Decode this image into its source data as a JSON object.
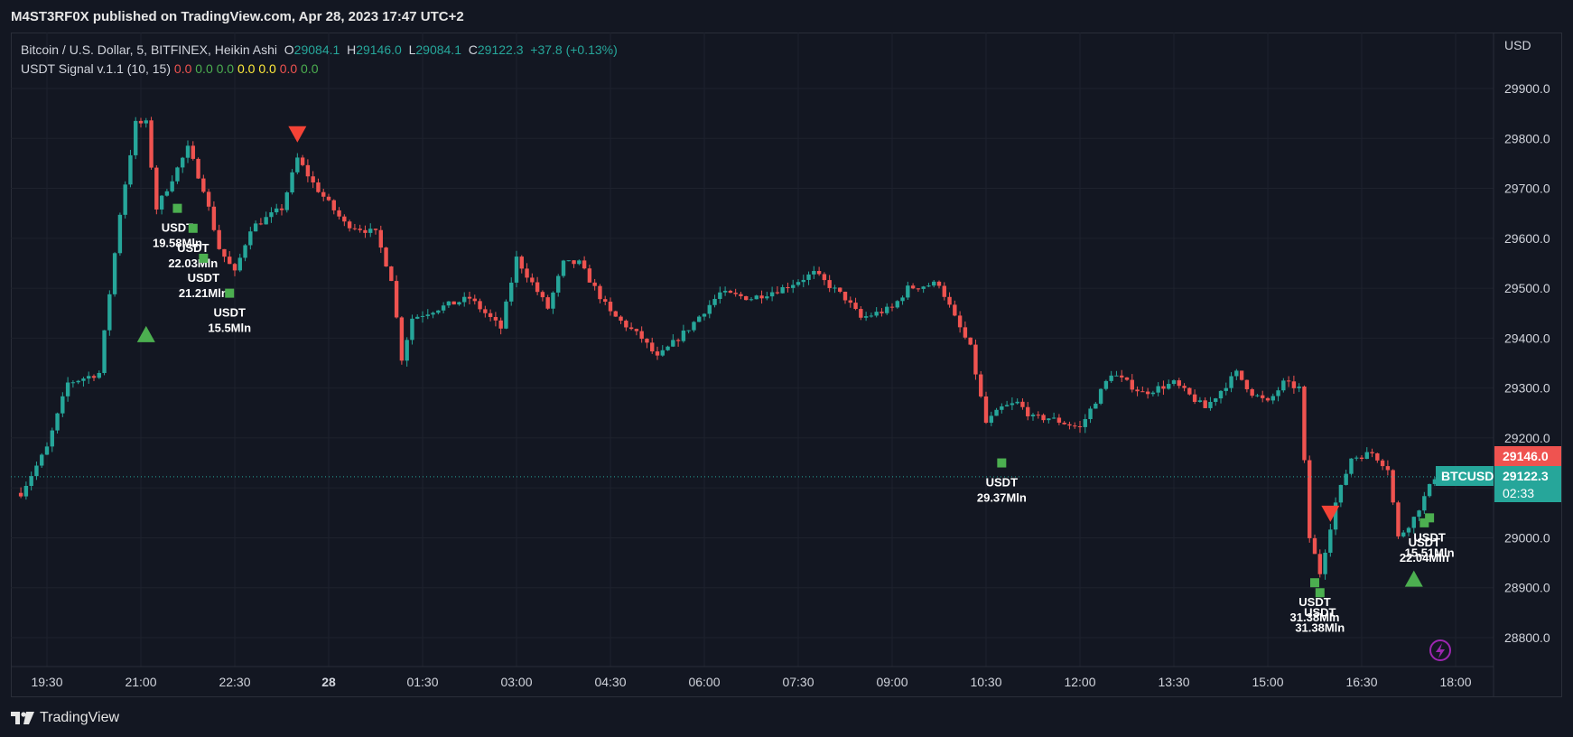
{
  "header": {
    "published": "M4ST3RF0X published on TradingView.com, Apr 28, 2023 17:47 UTC+2"
  },
  "legend": {
    "symbol": "Bitcoin / U.S. Dollar, 5, BITFINEX, Heikin Ashi",
    "o_label": "O",
    "o_value": "29084.1",
    "h_label": "H",
    "h_value": "29146.0",
    "l_label": "L",
    "l_value": "29084.1",
    "c_label": "C",
    "c_value": "29122.3",
    "change": "+37.8 (+0.13%)",
    "indicator": "USDT Signal v.1.1 (10, 15)",
    "indicator_values": [
      {
        "text": "0.0",
        "color": "#ef5350"
      },
      {
        "text": "0.0",
        "color": "#4caf50"
      },
      {
        "text": "0.0",
        "color": "#4caf50"
      },
      {
        "text": "0.0",
        "color": "#ffeb3b"
      },
      {
        "text": "0.0",
        "color": "#ffeb3b"
      },
      {
        "text": "0.0",
        "color": "#ef5350"
      },
      {
        "text": "0.0",
        "color": "#4caf50"
      }
    ]
  },
  "price_axis": {
    "currency": "USD",
    "ticks": [
      "29900.0",
      "29800.0",
      "29700.0",
      "29600.0",
      "29500.0",
      "29400.0",
      "29300.0",
      "29200.0",
      "29100.0",
      "29000.0",
      "28900.0",
      "28800.0"
    ],
    "high_label": "29146.0",
    "price_label": "29122.3",
    "countdown": "02:33",
    "symbol_tag": "BTCUSD"
  },
  "time_axis": {
    "ticks": [
      "19:30",
      "21:00",
      "22:30",
      "28",
      "01:30",
      "03:00",
      "04:30",
      "06:00",
      "07:30",
      "09:00",
      "10:30",
      "12:00",
      "13:30",
      "15:00",
      "16:30",
      "18:00"
    ]
  },
  "footer": {
    "brand": "TradingView"
  },
  "colors": {
    "up": "#26a69a",
    "down": "#ef5350",
    "signal": "#4caf50",
    "sell": "#f44336",
    "background": "#131722",
    "grid": "#1e222d"
  },
  "chart_data": {
    "type": "candlestick",
    "style": "Heikin Ashi",
    "interval": "5",
    "ylim": [
      28740,
      29960
    ],
    "grid": true,
    "keypoints": [
      {
        "t": "19:05",
        "p": 29090
      },
      {
        "t": "19:30",
        "p": 29180
      },
      {
        "t": "19:50",
        "p": 29310
      },
      {
        "t": "20:20",
        "p": 29330
      },
      {
        "t": "20:40",
        "p": 29650
      },
      {
        "t": "20:55",
        "p": 29830
      },
      {
        "t": "21:05",
        "p": 29830
      },
      {
        "t": "21:15",
        "p": 29660
      },
      {
        "t": "21:30",
        "p": 29720
      },
      {
        "t": "21:45",
        "p": 29780
      },
      {
        "t": "22:00",
        "p": 29700
      },
      {
        "t": "22:15",
        "p": 29580
      },
      {
        "t": "22:30",
        "p": 29530
      },
      {
        "t": "22:45",
        "p": 29620
      },
      {
        "t": "23:15",
        "p": 29660
      },
      {
        "t": "23:30",
        "p": 29760
      },
      {
        "t": "23:45",
        "p": 29710
      },
      {
        "t": "00:15",
        "p": 29630
      },
      {
        "t": "00:45",
        "p": 29610
      },
      {
        "t": "01:00",
        "p": 29520
      },
      {
        "t": "01:10",
        "p": 29360
      },
      {
        "t": "01:20",
        "p": 29440
      },
      {
        "t": "01:45",
        "p": 29460
      },
      {
        "t": "02:15",
        "p": 29480
      },
      {
        "t": "02:45",
        "p": 29420
      },
      {
        "t": "03:00",
        "p": 29560
      },
      {
        "t": "03:30",
        "p": 29460
      },
      {
        "t": "03:45",
        "p": 29550
      },
      {
        "t": "04:00",
        "p": 29550
      },
      {
        "t": "04:30",
        "p": 29450
      },
      {
        "t": "05:00",
        "p": 29400
      },
      {
        "t": "05:15",
        "p": 29360
      },
      {
        "t": "05:45",
        "p": 29420
      },
      {
        "t": "06:15",
        "p": 29490
      },
      {
        "t": "06:45",
        "p": 29480
      },
      {
        "t": "07:15",
        "p": 29500
      },
      {
        "t": "07:45",
        "p": 29530
      },
      {
        "t": "08:15",
        "p": 29480
      },
      {
        "t": "08:30",
        "p": 29440
      },
      {
        "t": "09:00",
        "p": 29460
      },
      {
        "t": "09:15",
        "p": 29500
      },
      {
        "t": "09:45",
        "p": 29510
      },
      {
        "t": "10:00",
        "p": 29440
      },
      {
        "t": "10:15",
        "p": 29380
      },
      {
        "t": "10:30",
        "p": 29230
      },
      {
        "t": "10:45",
        "p": 29260
      },
      {
        "t": "11:00",
        "p": 29270
      },
      {
        "t": "11:15",
        "p": 29240
      },
      {
        "t": "11:30",
        "p": 29240
      },
      {
        "t": "12:00",
        "p": 29220
      },
      {
        "t": "12:30",
        "p": 29330
      },
      {
        "t": "13:00",
        "p": 29290
      },
      {
        "t": "13:30",
        "p": 29310
      },
      {
        "t": "14:00",
        "p": 29260
      },
      {
        "t": "14:30",
        "p": 29330
      },
      {
        "t": "14:45",
        "p": 29290
      },
      {
        "t": "15:00",
        "p": 29270
      },
      {
        "t": "15:15",
        "p": 29310
      },
      {
        "t": "15:30",
        "p": 29300
      },
      {
        "t": "15:40",
        "p": 29000
      },
      {
        "t": "15:50",
        "p": 28930
      },
      {
        "t": "16:05",
        "p": 29070
      },
      {
        "t": "16:20",
        "p": 29160
      },
      {
        "t": "16:40",
        "p": 29170
      },
      {
        "t": "16:55",
        "p": 29140
      },
      {
        "t": "17:05",
        "p": 29000
      },
      {
        "t": "17:20",
        "p": 29040
      },
      {
        "t": "17:40",
        "p": 29122
      }
    ],
    "signals": [
      {
        "kind": "buy-triangle",
        "t": "21:05",
        "p": 29410
      },
      {
        "kind": "sell-triangle",
        "t": "23:30",
        "p": 29810
      },
      {
        "kind": "sell-triangle",
        "t": "16:00",
        "p": 29050
      },
      {
        "kind": "buy-triangle",
        "t": "17:20",
        "p": 28920
      }
    ],
    "annotations": [
      {
        "t": "21:35",
        "p": 29660,
        "label": "USDT",
        "value": "19.58Mln"
      },
      {
        "t": "21:50",
        "p": 29620,
        "label": "USDT",
        "value": "22.03Mln"
      },
      {
        "t": "22:00",
        "p": 29560,
        "label": "USDT",
        "value": "21.21Mln"
      },
      {
        "t": "22:25",
        "p": 29490,
        "label": "USDT",
        "value": "15.5Mln"
      },
      {
        "t": "10:45",
        "p": 29150,
        "label": "USDT",
        "value": "29.37Mln"
      },
      {
        "t": "15:45",
        "p": 28910,
        "label": "USDT",
        "value": "31.38Mln"
      },
      {
        "t": "15:50",
        "p": 28890,
        "label": "USDT",
        "value": "31.38Mln"
      },
      {
        "t": "17:30",
        "p": 29030,
        "label": "USDT",
        "value": "22.04Mln"
      },
      {
        "t": "17:35",
        "p": 29040,
        "label": "USDT",
        "value": "15.51Mln"
      }
    ]
  }
}
